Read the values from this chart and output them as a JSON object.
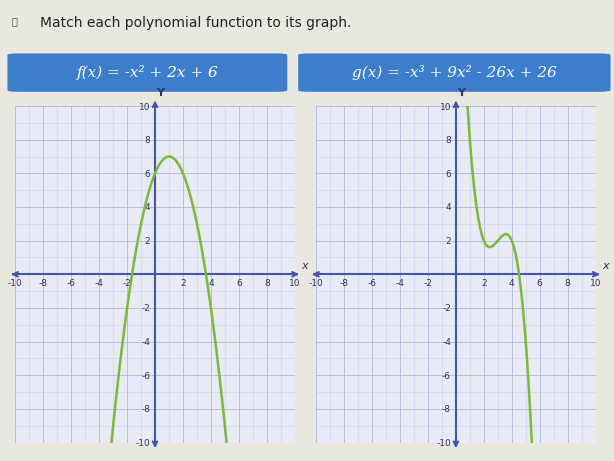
{
  "title": "Match each polynomial function to its graph.",
  "func1_label": "f(x) = -x² + 2x + 6",
  "func2_label": "g(x) = -x³ + 9x² - 26x + 26",
  "button_color": "#3d7ecc",
  "button_text_color": "#ffffff",
  "curve_color": "#7db83a",
  "bg_color": "#e8e8e0",
  "graph_bg": "#e8eaf5",
  "grid_color": "#b0b8d8",
  "grid_minor_color": "#c8d0e8",
  "axis_range": [
    -10,
    10
  ],
  "y_range": [
    -10,
    10
  ],
  "tick_step": 2,
  "curve_linewidth": 1.8,
  "axis_color": "#4455aa"
}
